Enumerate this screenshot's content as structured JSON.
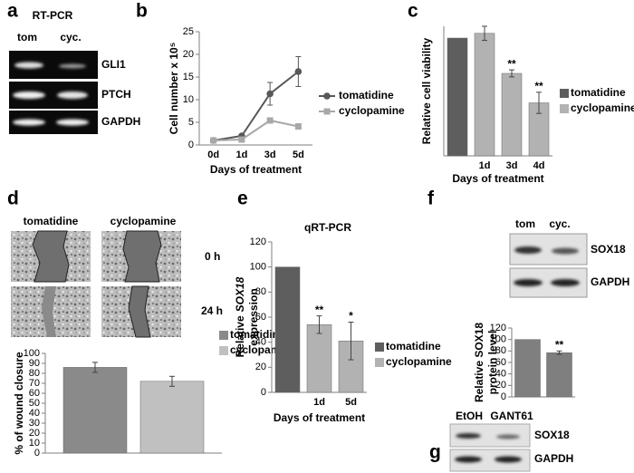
{
  "panel_letters": [
    "a",
    "b",
    "c",
    "d",
    "e",
    "f",
    "g"
  ],
  "blots": {
    "a": {
      "title": "RT-PCR",
      "lanes": [
        "tom",
        "cyc."
      ],
      "rows": [
        "GLI1",
        "PTCH",
        "GAPDH"
      ]
    },
    "f": {
      "lanes": [
        "tom",
        "cyc."
      ],
      "rows": [
        "SOX18",
        "GAPDH"
      ]
    },
    "g": {
      "lanes": [
        "EtOH",
        "GANT61"
      ],
      "rows": [
        "SOX18",
        "GAPDH"
      ]
    }
  },
  "wound_images": {
    "columns": [
      "tomatidine",
      "cyclopamine"
    ],
    "rows": [
      "0 h",
      "24 h"
    ]
  },
  "chart_data": [
    {
      "type": "line",
      "categories": [
        "0d",
        "1d",
        "3d",
        "5d"
      ],
      "ylabel": "Cell number x 10⁵",
      "xlabel": "Days of treatment",
      "ylim": [
        0,
        25
      ],
      "yticks": [
        0,
        5,
        10,
        15,
        20,
        25
      ],
      "legend": "right",
      "series": [
        {
          "name": "tomatidine",
          "color": "#585858",
          "marker": "circle",
          "values": [
            1,
            2,
            11.3,
            16.2
          ],
          "errors": [
            0.2,
            0.3,
            2.5,
            3.3
          ]
        },
        {
          "name": "cyclopamine",
          "color": "#a8a8a8",
          "marker": "square",
          "values": [
            1,
            1.2,
            5.4,
            4.1
          ],
          "errors": [
            0.1,
            0.2,
            0.4,
            0.5
          ]
        }
      ]
    },
    {
      "type": "bar",
      "categories": [
        null,
        "1d",
        "3d",
        "4d"
      ],
      "ylabel": "Relative cell viability",
      "xlabel": "Days of treatment",
      "ylim": [
        0,
        110
      ],
      "legend": "right",
      "series": [
        {
          "name": "tomatidine",
          "color": "#5e5e5e",
          "values": [
            100,
            null,
            null,
            null
          ],
          "errors": [
            null,
            null,
            null,
            null
          ],
          "significance": [
            null,
            null,
            null,
            null
          ]
        },
        {
          "name": "cyclopamine",
          "color": "#b2b2b2",
          "values": [
            null,
            104,
            70,
            45
          ],
          "errors": [
            null,
            6,
            3,
            9
          ],
          "significance": [
            null,
            null,
            "**",
            "**"
          ]
        }
      ]
    },
    {
      "type": "bar",
      "categories": [
        null
      ],
      "ylabel": "% of wound closure",
      "ylim": [
        0,
        100
      ],
      "yticks": [
        0,
        10,
        20,
        30,
        40,
        50,
        60,
        70,
        80,
        90,
        100
      ],
      "legend": "top-right",
      "series": [
        {
          "name": "tomatidine",
          "color": "#8a8a8a",
          "values": [
            86
          ],
          "errors": [
            5
          ],
          "significance": [
            null
          ]
        },
        {
          "name": "cyclopamine",
          "color": "#c0c0c0",
          "values": [
            72
          ],
          "errors": [
            5
          ],
          "significance": [
            null
          ]
        }
      ]
    },
    {
      "type": "bar",
      "title": "qRT-PCR",
      "categories": [
        null,
        "1d",
        "5d"
      ],
      "ylabel": [
        [
          {
            "text": "Relative"
          },
          {
            "text": "SOX18",
            "italic": true
          }
        ],
        [
          {
            "text": "expression"
          }
        ]
      ],
      "xlabel": "Days of treatment",
      "ylim": [
        0,
        120
      ],
      "yticks": [
        0,
        20,
        40,
        60,
        80,
        100,
        120
      ],
      "legend": "right",
      "series": [
        {
          "name": "tomatidine",
          "color": "#5e5e5e",
          "values": [
            100,
            null,
            null
          ],
          "errors": [
            null,
            null,
            null
          ],
          "significance": [
            null,
            null,
            null
          ]
        },
        {
          "name": "cyclopamine",
          "color": "#b2b2b2",
          "values": [
            null,
            54,
            41
          ],
          "errors": [
            null,
            7,
            15
          ],
          "significance": [
            null,
            "**",
            "*"
          ]
        }
      ]
    },
    {
      "type": "bar",
      "categories": [
        null,
        null
      ],
      "ylabel": [
        [
          {
            "text": "Relative SOX18"
          }
        ],
        [
          {
            "text": "protein level"
          }
        ]
      ],
      "ylim": [
        0,
        120
      ],
      "yticks": [
        0,
        20,
        40,
        60,
        80,
        100,
        120
      ],
      "series": [
        {
          "color": "#7f7f7f",
          "values": [
            100,
            77
          ],
          "errors": [
            null,
            3
          ],
          "significance": [
            null,
            "**"
          ]
        }
      ]
    }
  ]
}
